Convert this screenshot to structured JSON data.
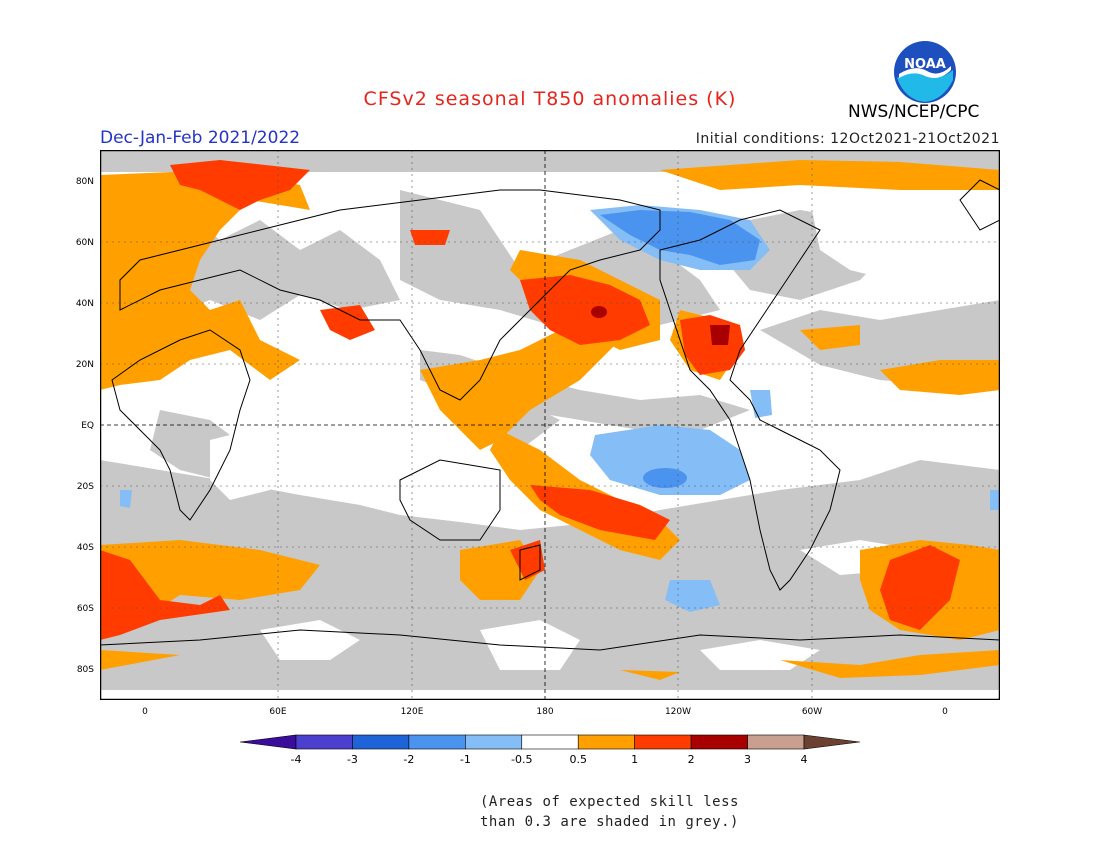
{
  "title": "CFSv2 seasonal T850 anomalies (K)",
  "season": "Dec-Jan-Feb 2021/2022",
  "initial_conditions": "Initial conditions: 12Oct2021-21Oct2021",
  "agency": "NWS/NCEP/CPC",
  "logo": {
    "text": "NOAA",
    "icon": "noaa-logo"
  },
  "map": {
    "lat_labels": [
      "80N",
      "60N",
      "40N",
      "20N",
      "EQ",
      "20S",
      "40S",
      "60S",
      "80S"
    ],
    "lon_labels": [
      "0",
      "60E",
      "120E",
      "180",
      "120W",
      "60W",
      "0"
    ],
    "colors": {
      "ocean_background": "#ffffff",
      "low_skill_grey": "#c8c8c8",
      "coastline": "#000000"
    }
  },
  "colorbar": {
    "labels": [
      "-4",
      "-3",
      "-2",
      "-1",
      "-0.5",
      "0.5",
      "1",
      "2",
      "3",
      "4"
    ],
    "colors": [
      "#3a0e9a",
      "#4b3fd0",
      "#1e64d8",
      "#4a93ee",
      "#85bdf6",
      "#ffffff",
      "#ff9f00",
      "#ff3b00",
      "#a80000",
      "#c9a08f",
      "#6b4232"
    ]
  },
  "footnote": [
    "(Areas of expected skill less",
    "than 0.3 are shaded in grey.)"
  ]
}
